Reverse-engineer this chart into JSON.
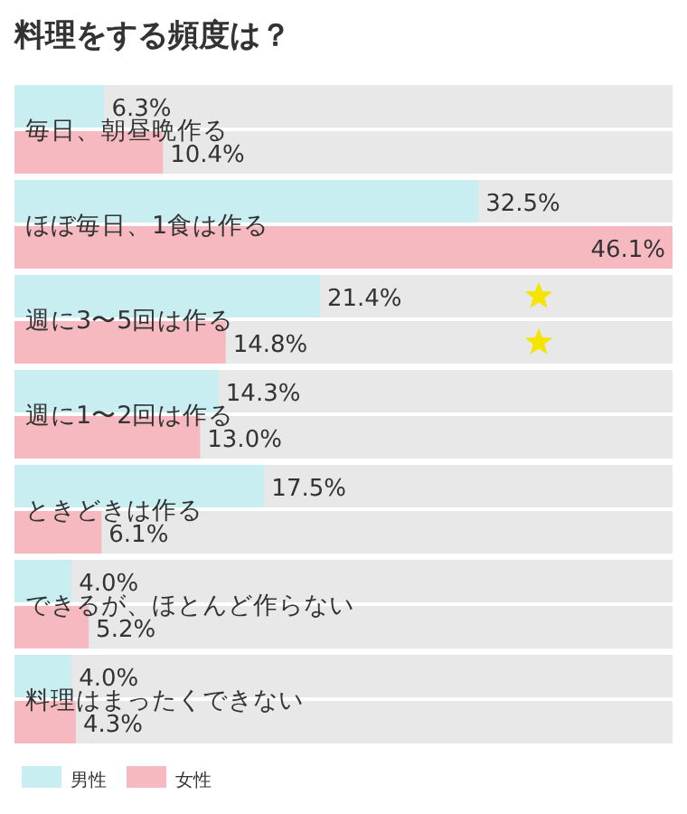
{
  "chart_data": {
    "type": "bar",
    "orientation": "horizontal",
    "title": "料理をする頻度は？",
    "categories": [
      "毎日、朝昼晩作る",
      "ほぼ毎日、1食は作る",
      "週に3〜5回は作る",
      "週に1〜2回は作る",
      "ときどきは作る",
      "できるが、ほとんど作らない",
      "料理はまったくできない"
    ],
    "series": [
      {
        "name": "男性",
        "color": "#c9eef2",
        "values": [
          6.3,
          32.5,
          21.4,
          14.3,
          17.5,
          4.0,
          4.0
        ],
        "value_labels": [
          "6.3%",
          "32.5%",
          "21.4%",
          "14.3%",
          "17.5%",
          "4.0%",
          "4.0%"
        ]
      },
      {
        "name": "女性",
        "color": "#f6b9c0",
        "values": [
          10.4,
          46.1,
          14.8,
          13.0,
          6.1,
          5.2,
          4.3
        ],
        "value_labels": [
          "10.4%",
          "46.1%",
          "14.8%",
          "13.0%",
          "6.1%",
          "5.2%",
          "4.3%"
        ]
      }
    ],
    "legend": "bottom left"
  }
}
